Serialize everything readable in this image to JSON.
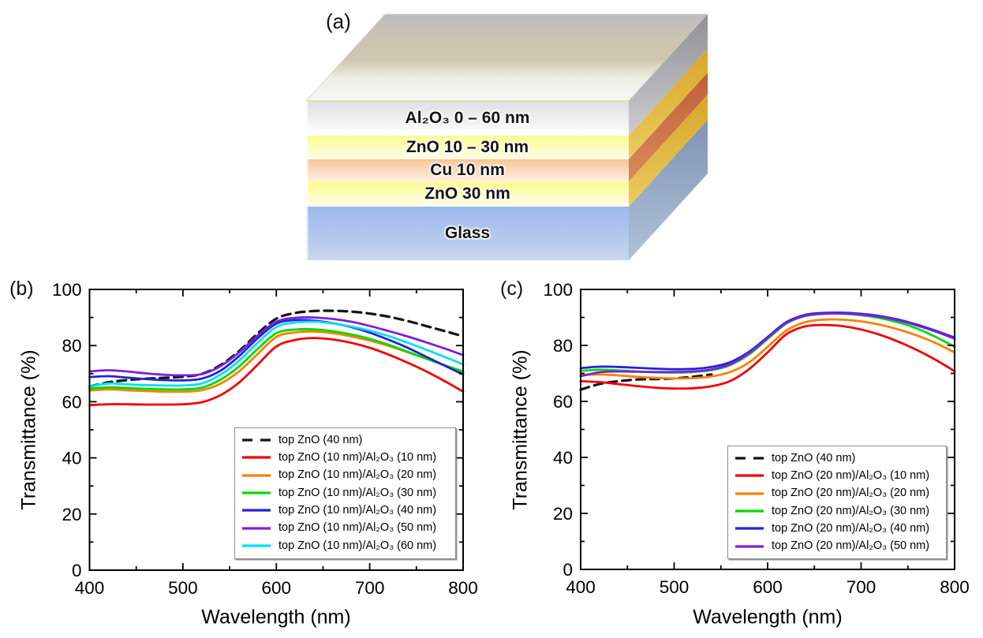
{
  "diagram": {
    "panel_label": "(a)",
    "top_face": {
      "back": "#bcbcc0",
      "tan_mid": "#cfc6ae",
      "front": "#f7f7f7"
    },
    "layers": [
      {
        "label": "Al₂O₃ 0 – 60 nm",
        "height": 44,
        "front_top": "#dfdfe4",
        "front_bottom": "#ffffff",
        "side_top": "#8f8f94",
        "side_bottom": "#cdcdd2"
      },
      {
        "label": "ZnO 10 – 30 nm",
        "height": 30,
        "front_top": "#fcfc8e",
        "front_bottom": "#fffcea",
        "side_top": "#d7a627",
        "side_bottom": "#eccb60"
      },
      {
        "label": "Cu 10 nm",
        "height": 28,
        "front_top": "#f6c696",
        "front_bottom": "#fdf0e2",
        "side_top": "#bf5e38",
        "side_bottom": "#da8b5b"
      },
      {
        "label": "ZnO 30 nm",
        "height": 32,
        "front_top": "#fcfc8e",
        "front_bottom": "#fffcea",
        "side_top": "#d7a627",
        "side_bottom": "#eccb60"
      },
      {
        "label": "Glass",
        "height": 68,
        "front_top": "#9cb8ec",
        "front_bottom": "#c8d5f0",
        "side_top": "#7e94b4",
        "side_bottom": "#b0c2d9"
      }
    ]
  },
  "chart_data": [
    {
      "id": "b",
      "panel_label": "(b)",
      "type": "line",
      "xlabel": "Wavelength (nm)",
      "ylabel": "Transmittance (%)",
      "xlim": [
        400,
        800
      ],
      "ylim": [
        0,
        100
      ],
      "x_major_ticks": [
        400,
        500,
        600,
        700,
        800
      ],
      "x_minor_ticks": [
        450,
        550,
        650,
        750
      ],
      "y_major_ticks": [
        0,
        20,
        40,
        60,
        80,
        100
      ],
      "y_minor_ticks": [
        10,
        30,
        50,
        70,
        90
      ],
      "grid": false,
      "legend_position": "bottom-right",
      "x": [
        400,
        420,
        440,
        460,
        480,
        500,
        520,
        540,
        560,
        580,
        600,
        620,
        640,
        660,
        680,
        700,
        720,
        740,
        760,
        780,
        800
      ],
      "series": [
        {
          "name": "top ZnO (40 nm)",
          "color": "#141414",
          "dash": true,
          "values": [
            65.4,
            66.9,
            67.7,
            68.2,
            68.5,
            68.9,
            69.9,
            73.0,
            78.0,
            84.3,
            89.6,
            91.6,
            92.3,
            92.4,
            92.1,
            91.4,
            90.3,
            88.8,
            87.0,
            85.2,
            83.3
          ]
        },
        {
          "name": "top ZnO (10 nm)/Al₂O₃ (10 nm)",
          "color": "#f40000",
          "dash": false,
          "values": [
            58.8,
            59.1,
            59.1,
            59.0,
            59.0,
            59.1,
            59.8,
            62.3,
            66.8,
            73.2,
            79.7,
            82.0,
            82.7,
            82.2,
            81.0,
            79.2,
            76.8,
            74.0,
            70.9,
            67.4,
            63.6
          ]
        },
        {
          "name": "top ZnO (10 nm)/Al₂O₃ (20 nm)",
          "color": "#ff8000",
          "dash": false,
          "values": [
            64.0,
            64.4,
            64.1,
            63.8,
            63.6,
            63.6,
            64.1,
            66.4,
            70.8,
            77.0,
            83.1,
            84.7,
            85.0,
            84.4,
            83.3,
            81.8,
            79.9,
            77.7,
            75.4,
            73.0,
            70.4
          ]
        },
        {
          "name": "top ZnO (10 nm)/Al₂O₃ (30 nm)",
          "color": "#00dc00",
          "dash": false,
          "values": [
            64.7,
            65.1,
            64.9,
            64.6,
            64.4,
            64.4,
            65.0,
            67.8,
            72.5,
            78.8,
            84.4,
            85.7,
            85.8,
            85.1,
            84.0,
            82.4,
            80.3,
            77.9,
            75.4,
            73.0,
            70.8
          ]
        },
        {
          "name": "top ZnO (10 nm)/Al₂O₃ (40 nm)",
          "color": "#2222d8",
          "dash": false,
          "values": [
            68.8,
            69.1,
            68.6,
            68.1,
            67.7,
            67.6,
            68.2,
            71.0,
            76.2,
            82.6,
            87.8,
            89.1,
            88.9,
            88.0,
            86.6,
            84.6,
            82.1,
            79.3,
            76.1,
            72.9,
            69.7
          ]
        },
        {
          "name": "top ZnO (10 nm)/Al₂O₃ (50 nm)",
          "color": "#7d1fdd",
          "dash": false,
          "values": [
            70.8,
            71.2,
            70.8,
            70.1,
            69.6,
            69.4,
            69.8,
            72.6,
            77.5,
            83.6,
            88.5,
            89.9,
            90.0,
            89.5,
            88.5,
            87.0,
            85.2,
            83.3,
            81.2,
            79.0,
            76.6
          ]
        },
        {
          "name": "top ZnO (10 nm)/Al₂O₃ (60 nm)",
          "color": "#00e0f0",
          "dash": false,
          "values": [
            65.4,
            66.5,
            66.2,
            65.9,
            65.8,
            65.8,
            66.5,
            69.6,
            74.6,
            81.0,
            86.6,
            88.2,
            88.5,
            87.9,
            86.8,
            85.3,
            83.4,
            81.1,
            78.6,
            76.0,
            73.3
          ]
        }
      ]
    },
    {
      "id": "c",
      "panel_label": "(c)",
      "type": "line",
      "xlabel": "Wavelength (nm)",
      "ylabel": "Transmittance (%)",
      "xlim": [
        400,
        800
      ],
      "ylim": [
        0,
        100
      ],
      "x_major_ticks": [
        400,
        500,
        600,
        700,
        800
      ],
      "x_minor_ticks": [
        450,
        550,
        650,
        750
      ],
      "y_major_ticks": [
        0,
        20,
        40,
        60,
        80,
        100
      ],
      "y_minor_ticks": [
        10,
        30,
        50,
        70,
        90
      ],
      "grid": false,
      "legend_position": "bottom-right",
      "x": [
        400,
        420,
        440,
        460,
        480,
        500,
        520,
        540,
        560,
        580,
        600,
        620,
        640,
        660,
        680,
        700,
        720,
        740,
        760,
        780,
        800
      ],
      "series": [
        {
          "name": "top ZnO (40 nm)",
          "color": "#141414",
          "dash": true,
          "x": [
            400,
            420,
            440,
            460,
            480,
            500,
            520,
            540
          ],
          "values": [
            64.2,
            66.2,
            67.2,
            67.8,
            68.0,
            68.2,
            68.8,
            69.6
          ]
        },
        {
          "name": "top ZnO (20 nm)/Al₂O₃ (10 nm)",
          "color": "#f40000",
          "dash": false,
          "values": [
            67.2,
            66.9,
            66.2,
            65.5,
            64.9,
            64.6,
            64.7,
            65.4,
            67.3,
            71.5,
            77.5,
            84.0,
            86.8,
            87.3,
            86.9,
            85.7,
            83.8,
            81.3,
            78.3,
            74.8,
            70.8
          ]
        },
        {
          "name": "top ZnO (20 nm)/Al₂O₃ (20 nm)",
          "color": "#ff8000",
          "dash": false,
          "values": [
            69.4,
            69.6,
            69.3,
            68.8,
            68.4,
            68.2,
            68.3,
            68.9,
            70.5,
            73.9,
            79.5,
            85.3,
            88.3,
            89.2,
            89.2,
            88.6,
            87.4,
            85.7,
            83.5,
            80.8,
            77.5
          ]
        },
        {
          "name": "top ZnO (20 nm)/Al₂O₃ (30 nm)",
          "color": "#00dc00",
          "dash": false,
          "values": [
            70.9,
            71.3,
            71.1,
            70.7,
            70.4,
            70.3,
            70.5,
            71.2,
            73.0,
            76.8,
            82.3,
            87.8,
            90.5,
            91.3,
            91.3,
            90.8,
            89.8,
            88.2,
            86.0,
            83.0,
            79.5
          ]
        },
        {
          "name": "top ZnO (20 nm)/Al₂O₃ (40 nm)",
          "color": "#2222d8",
          "dash": false,
          "values": [
            71.9,
            72.4,
            72.3,
            72.0,
            71.7,
            71.5,
            71.6,
            72.3,
            74.0,
            77.7,
            83.0,
            88.3,
            90.9,
            91.6,
            91.7,
            91.3,
            90.5,
            89.2,
            87.4,
            85.2,
            82.8
          ]
        },
        {
          "name": "top ZnO (20 nm)/Al₂O₃ (50 nm)",
          "color": "#7d1fdd",
          "dash": false,
          "values": [
            69.0,
            70.4,
            70.7,
            70.6,
            70.5,
            70.5,
            70.7,
            71.4,
            73.3,
            77.2,
            82.7,
            88.0,
            90.6,
            91.3,
            91.4,
            91.0,
            90.2,
            88.9,
            87.1,
            84.9,
            82.4
          ]
        }
      ]
    }
  ]
}
